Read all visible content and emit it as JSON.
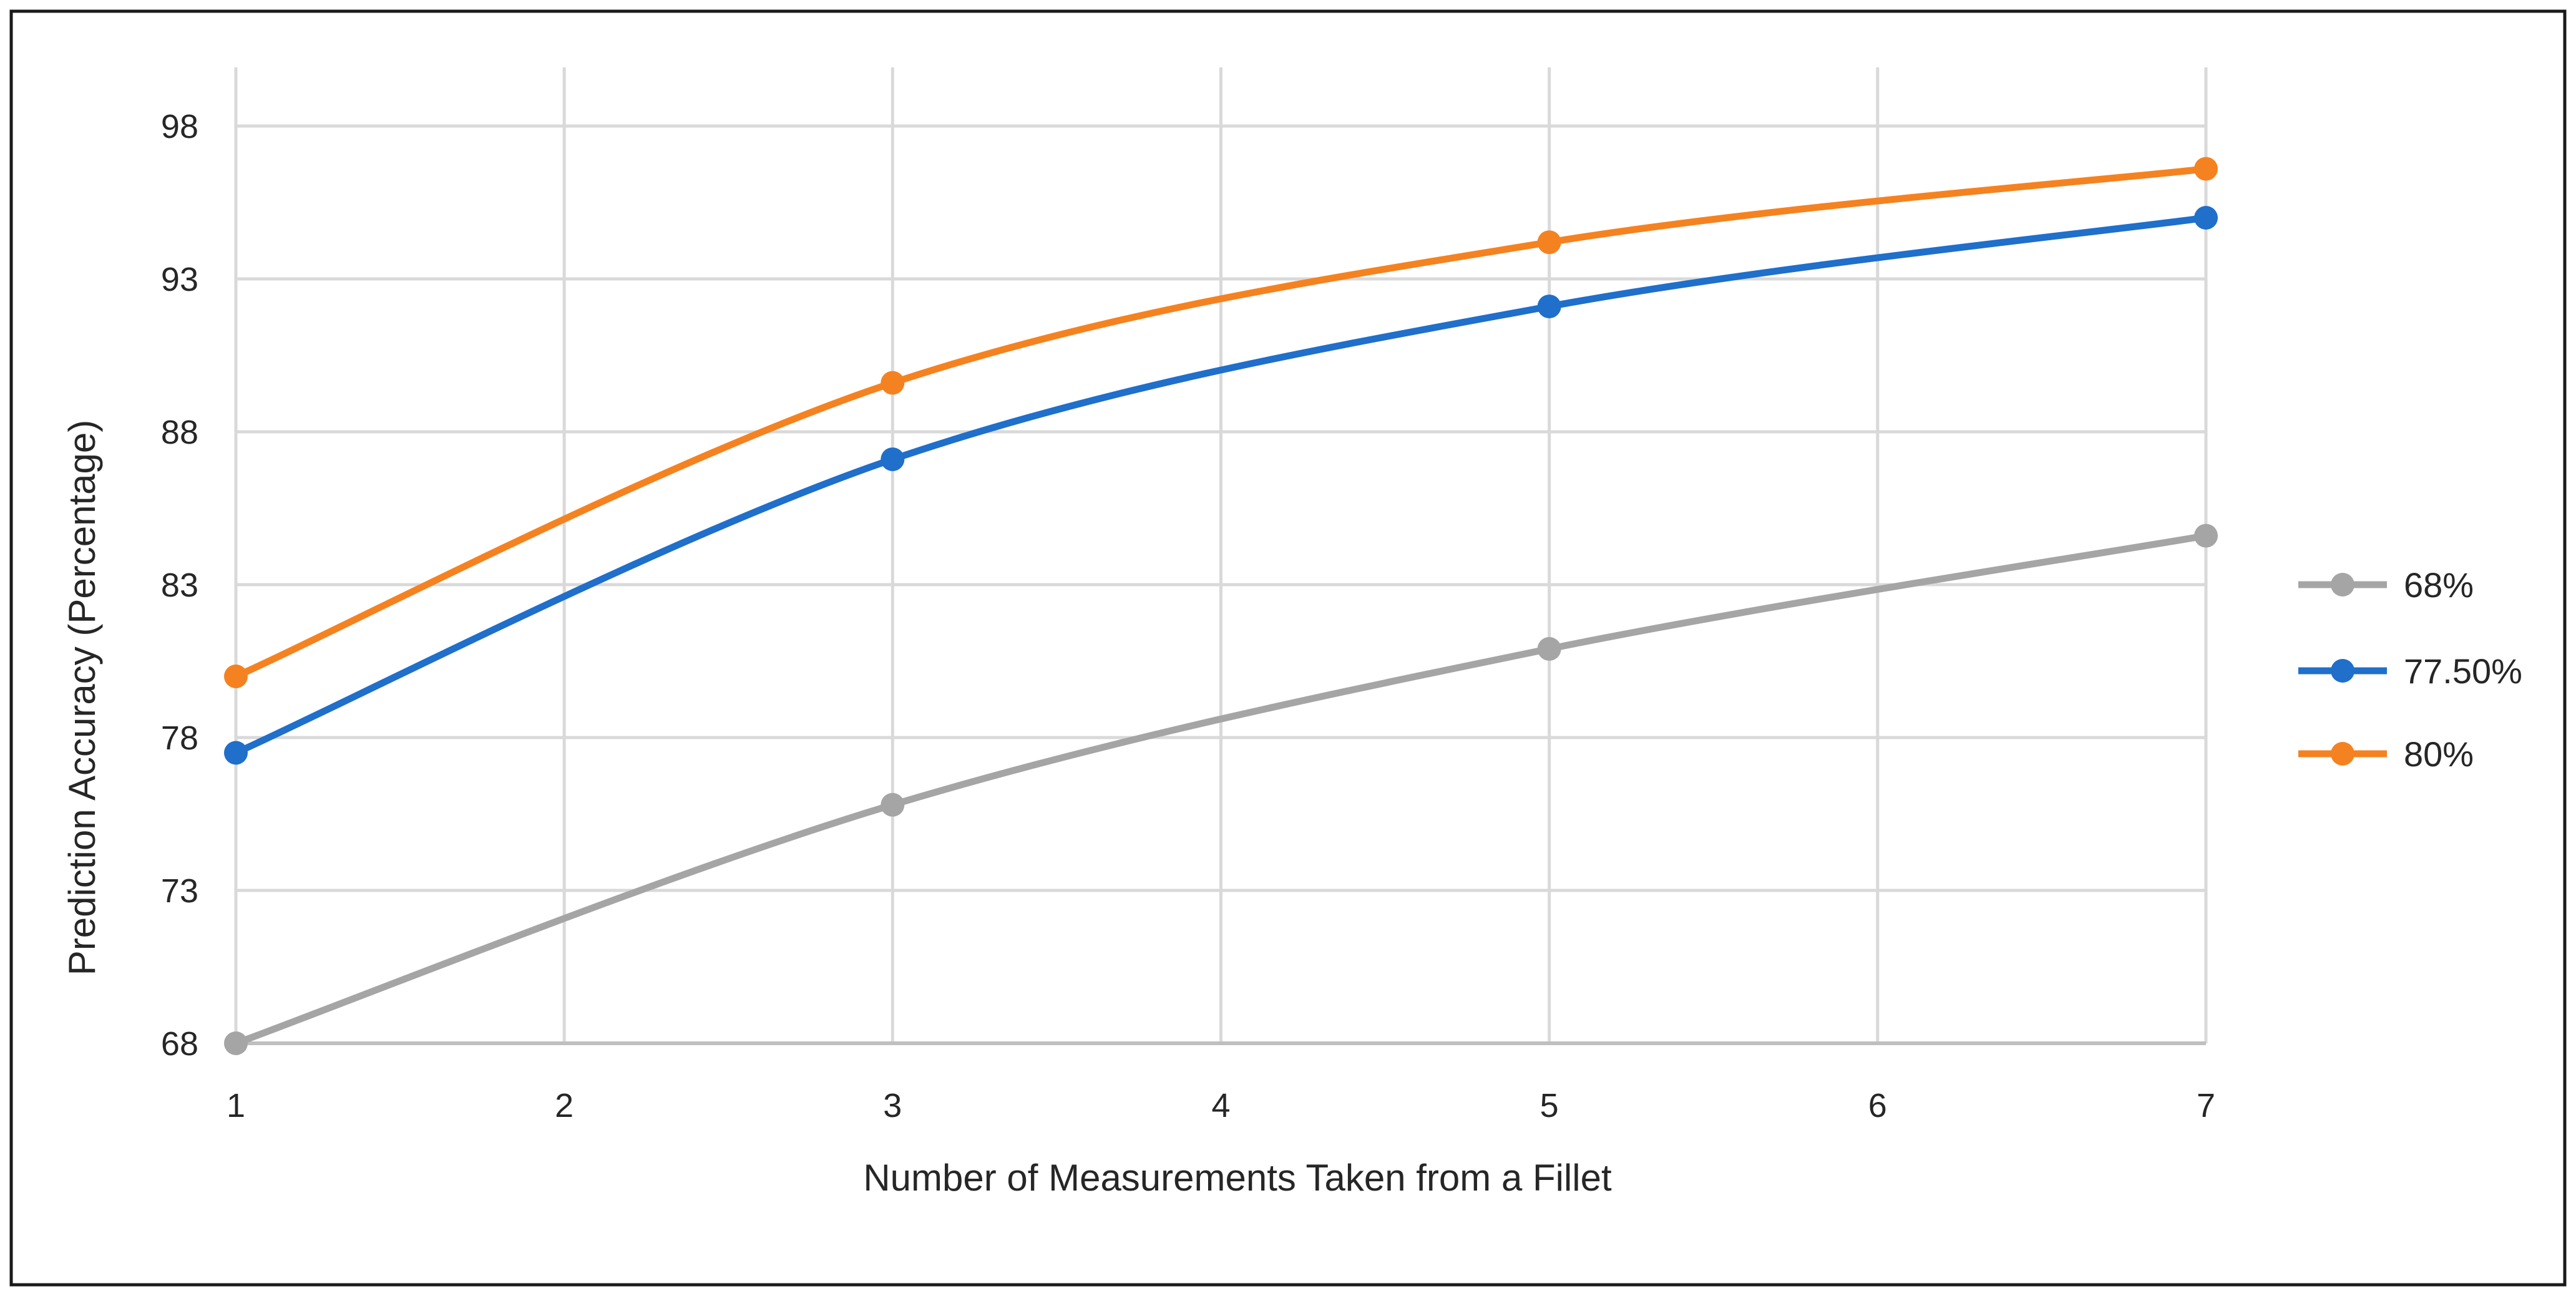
{
  "chart_data": {
    "type": "line",
    "title": "",
    "xlabel": "Number of Measurements Taken from a Fillet",
    "ylabel": "Prediction  Accuracy (Percentage)",
    "x_ticks": [
      "1",
      "2",
      "3",
      "4",
      "5",
      "6",
      "7"
    ],
    "y_ticks": [
      "68",
      "73",
      "78",
      "83",
      "88",
      "93",
      "98"
    ],
    "xlim": [
      1,
      7
    ],
    "ylim": [
      68,
      100
    ],
    "grid": true,
    "legend_position": "right",
    "smooth": true,
    "series": [
      {
        "name": "68%",
        "color": "#A5A5A5",
        "x": [
          1,
          3,
          5,
          7
        ],
        "y": [
          68,
          75.8,
          80.9,
          84.6
        ]
      },
      {
        "name": "77.50%",
        "color": "#1F6FCB",
        "x": [
          1,
          3,
          5,
          7
        ],
        "y": [
          77.5,
          87.1,
          92.1,
          95.0
        ]
      },
      {
        "name": "80%",
        "color": "#F58220",
        "x": [
          1,
          3,
          5,
          7
        ],
        "y": [
          80.0,
          89.6,
          94.2,
          96.6
        ]
      }
    ]
  }
}
